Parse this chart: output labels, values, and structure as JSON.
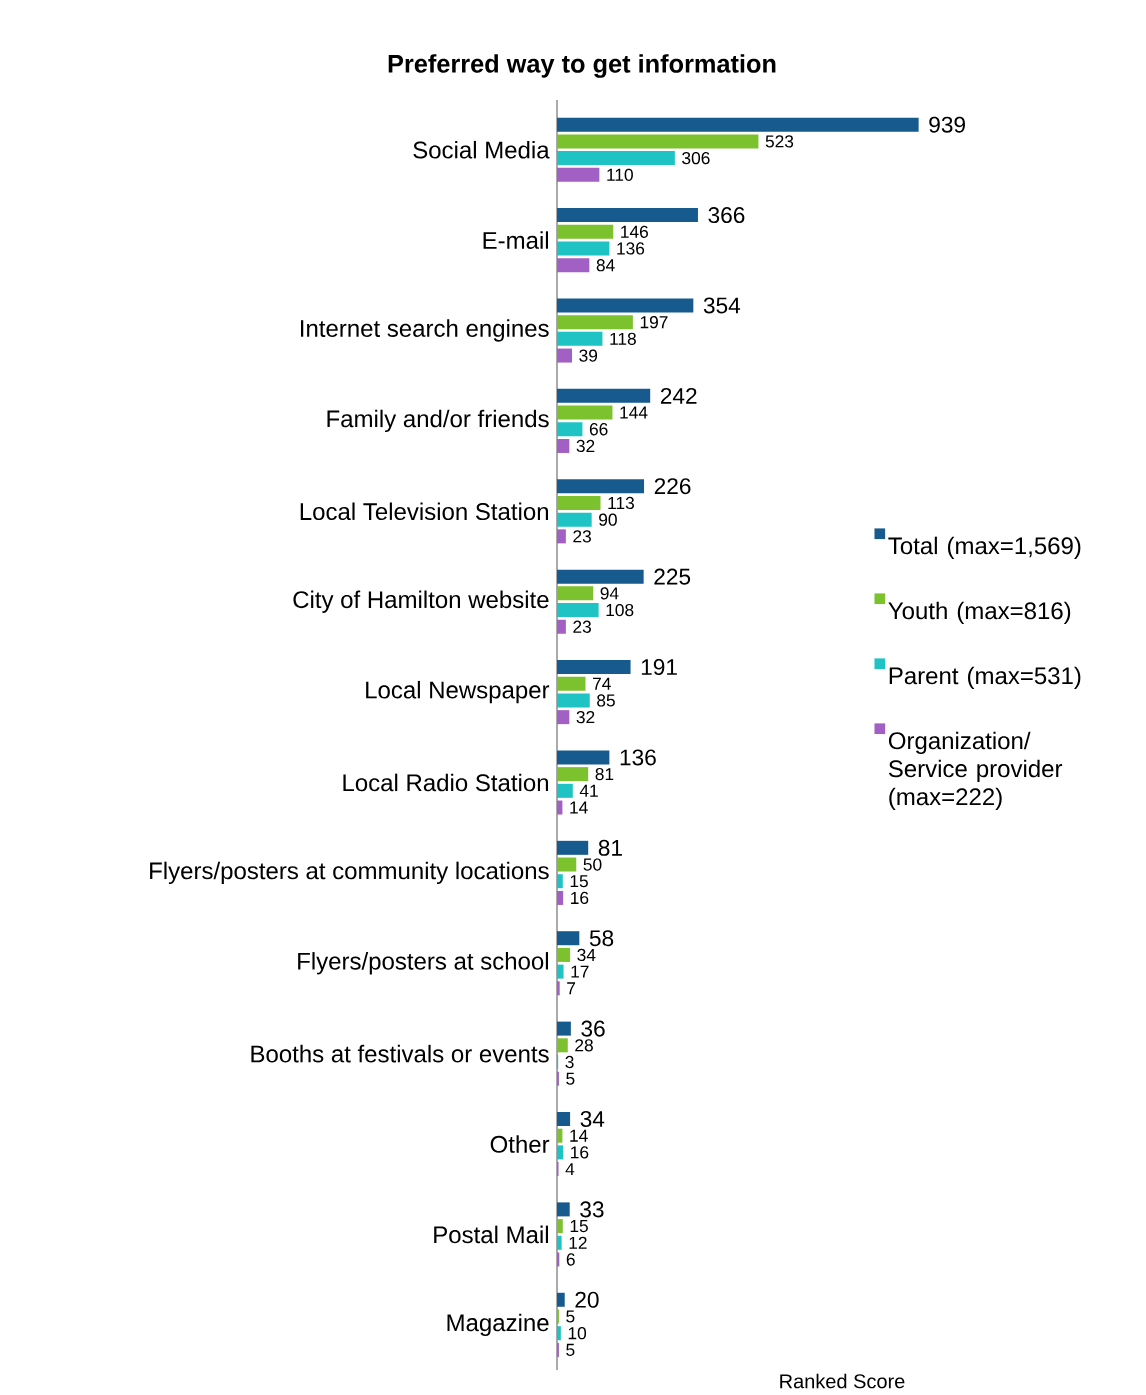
{
  "chart_data": {
    "type": "bar",
    "orientation": "horizontal",
    "title": "Preferred way to get information",
    "xlabel": "Ranked Score",
    "categories": [
      "Social Media",
      "E-mail",
      "Internet search engines",
      "Family and/or friends",
      "Local Television Station",
      "City of Hamilton website",
      "Local Newspaper",
      "Local Radio Station",
      "Flyers/posters at community locations",
      "Flyers/posters at school",
      "Booths at festivals or events",
      "Other",
      "Postal Mail",
      "Magazine"
    ],
    "series": [
      {
        "name": "Total (max=1,569)",
        "color": "#165a8e",
        "values": [
          939,
          366,
          354,
          242,
          226,
          225,
          191,
          136,
          81,
          58,
          36,
          34,
          33,
          20
        ]
      },
      {
        "name": "Youth (max=816)",
        "color": "#7cc12e",
        "values": [
          523,
          146,
          197,
          144,
          113,
          94,
          74,
          81,
          50,
          34,
          28,
          14,
          15,
          5
        ]
      },
      {
        "name": "Parent (max=531)",
        "color": "#1fc3c3",
        "values": [
          306,
          136,
          118,
          66,
          90,
          108,
          85,
          41,
          15,
          17,
          3,
          16,
          12,
          10
        ]
      },
      {
        "name": "Organization/ Service provider (max=222)",
        "color": "#a260c4",
        "values": [
          110,
          84,
          39,
          32,
          23,
          23,
          32,
          14,
          16,
          7,
          5,
          4,
          6,
          5
        ]
      }
    ],
    "data_labels": true,
    "legend": "right"
  }
}
